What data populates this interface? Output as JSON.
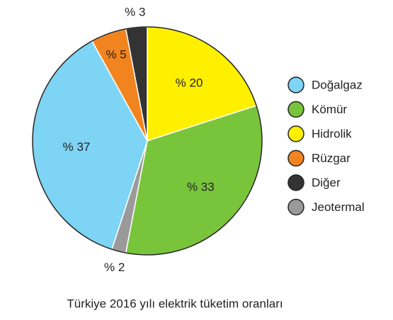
{
  "chart_data": {
    "type": "pie",
    "title": "Türkiye 2016 yılı elektrik tüketim oranları",
    "categories": [
      "Doğalgaz",
      "Kömür",
      "Hidrolik",
      "Rüzgar",
      "Diğer",
      "Jeotermal"
    ],
    "values": [
      37,
      33,
      20,
      5,
      3,
      2
    ],
    "value_labels": [
      "% 37",
      "% 33",
      "% 20",
      "% 5",
      "% 3",
      "% 2"
    ],
    "colors": [
      "#7dd4f4",
      "#78c43a",
      "#fff000",
      "#f2841f",
      "#333333",
      "#9a9a9a"
    ],
    "legend": "right"
  }
}
